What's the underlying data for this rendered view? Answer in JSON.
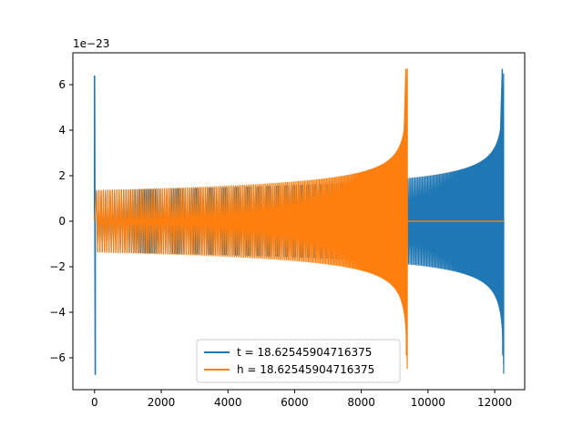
{
  "chart_data": {
    "type": "line",
    "title": "",
    "xlabel": "",
    "ylabel": "",
    "offset_text": "1e−23",
    "xlim": [
      -650,
      12900
    ],
    "ylim": [
      -7.4,
      7.4
    ],
    "xticks": [
      0,
      2000,
      4000,
      6000,
      8000,
      10000,
      12000
    ],
    "xtick_labels": [
      "0",
      "2000",
      "4000",
      "6000",
      "8000",
      "10000",
      "12000"
    ],
    "yticks": [
      -6,
      -4,
      -2,
      0,
      2,
      4,
      6
    ],
    "ytick_labels": [
      "−6",
      "−4",
      "−2",
      "0",
      "2",
      "4",
      "6"
    ],
    "grid": false,
    "legend_position": "lower-center",
    "series": [
      {
        "name": "t = 18.62545904716375",
        "color": "#1f77b4",
        "x_end": 12270,
        "initial_spike": [
          6.4,
          -6.75
        ],
        "amplitude_start": 1.35,
        "amplitude_end": 6.7
      },
      {
        "name": "h = 18.62545904716375",
        "color": "#ff7f0e",
        "x_end": 9380,
        "flat_to": 12270,
        "amplitude_start": 1.35,
        "amplitude_end": 6.7
      }
    ]
  }
}
